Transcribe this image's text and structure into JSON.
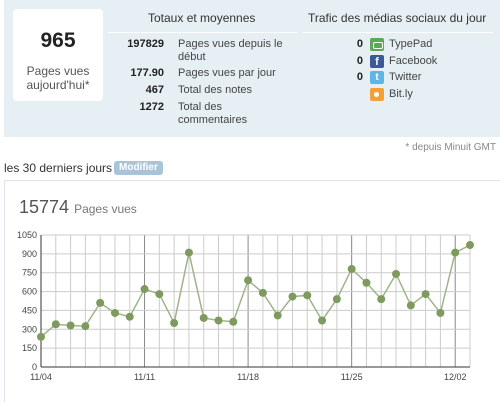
{
  "today": {
    "value": "965",
    "label": "Pages vues aujourd'hui*"
  },
  "totals": {
    "title": "Totaux et moyennes",
    "rows": [
      {
        "value": "197829",
        "label": "Pages vues depuis le début"
      },
      {
        "value": "177.90",
        "label": "Pages vues par jour"
      },
      {
        "value": "467",
        "label": "Total des notes"
      },
      {
        "value": "1272",
        "label": "Total des commentaires"
      }
    ]
  },
  "social": {
    "title": "Trafic des médias sociaux du jour",
    "items": [
      {
        "count": "0",
        "name": "TypePad",
        "icon": "typepad-icon"
      },
      {
        "count": "0",
        "name": "Facebook",
        "icon": "facebook-icon"
      },
      {
        "count": "0",
        "name": "Twitter",
        "icon": "twitter-icon"
      },
      {
        "count": "",
        "name": "Bit.ly",
        "icon": "bitly-icon"
      }
    ]
  },
  "footnote": "* depuis Minuit GMT",
  "period": {
    "label": "les 30 derniers jours",
    "modify_label": "Modifier"
  },
  "chart_header": {
    "total": "15774",
    "unit": "Pages vues"
  },
  "chart_data": {
    "type": "line",
    "x_tick_labels": [
      "11/04",
      "11/11",
      "11/18",
      "11/25",
      "12/02"
    ],
    "x_tick_index": [
      0,
      7,
      14,
      21,
      28
    ],
    "y_ticks": [
      "0",
      "150",
      "300",
      "450",
      "600",
      "750",
      "900",
      "1050"
    ],
    "ylim": [
      0,
      1050
    ],
    "grid": true,
    "series": [
      {
        "values": [
          240,
          340,
          330,
          325,
          510,
          430,
          400,
          620,
          580,
          350,
          910,
          390,
          370,
          360,
          690,
          590,
          410,
          560,
          570,
          370,
          540,
          780,
          670,
          540,
          740,
          490,
          580,
          430,
          910,
          970
        ]
      }
    ],
    "colors": {
      "line": "#9fb48a",
      "marker": "#7e9a5f",
      "grid": "#ccc",
      "major_grid": "#888"
    }
  }
}
